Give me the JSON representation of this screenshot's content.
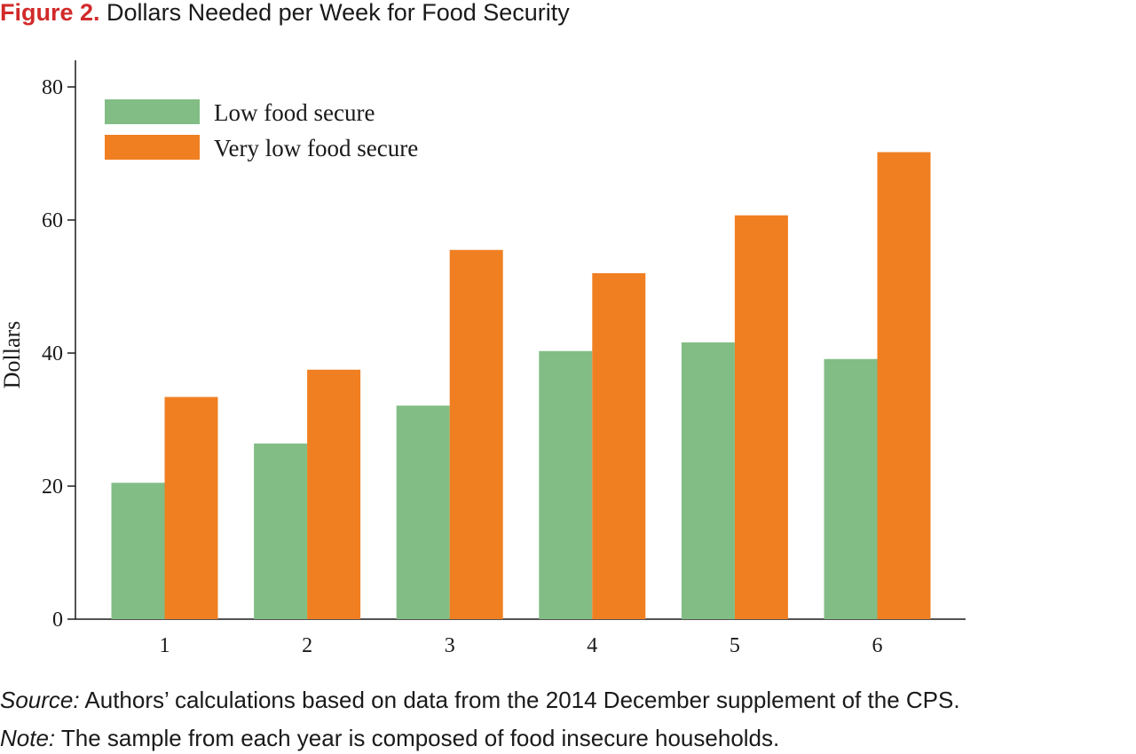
{
  "figure": {
    "label": "Figure 2.",
    "title": "Dollars Needed per Week for Food Security"
  },
  "chart_data": {
    "type": "bar",
    "categories": [
      "1",
      "2",
      "3",
      "4",
      "5",
      "6"
    ],
    "series": [
      {
        "name": "Low food secure",
        "color": "#82bd85",
        "values": [
          20.5,
          26.4,
          32.1,
          40.3,
          41.6,
          39.1
        ]
      },
      {
        "name": "Very low food secure",
        "color": "#f07f22",
        "values": [
          33.4,
          37.5,
          55.5,
          52.0,
          60.7,
          70.2
        ]
      }
    ],
    "ylabel": "Dollars",
    "xlabel": "",
    "ylim": [
      0,
      80
    ],
    "yticks": [
      0,
      20,
      40,
      60,
      80
    ],
    "grid": false,
    "legend_position": "top-left"
  },
  "captions": {
    "source_lead": "Source:",
    "source_text": " Authors’ calculations based on data from the 2014 December supplement of the CPS.",
    "note_lead": "Note:",
    "note_text": " The sample from each year is composed of food insecure households."
  }
}
